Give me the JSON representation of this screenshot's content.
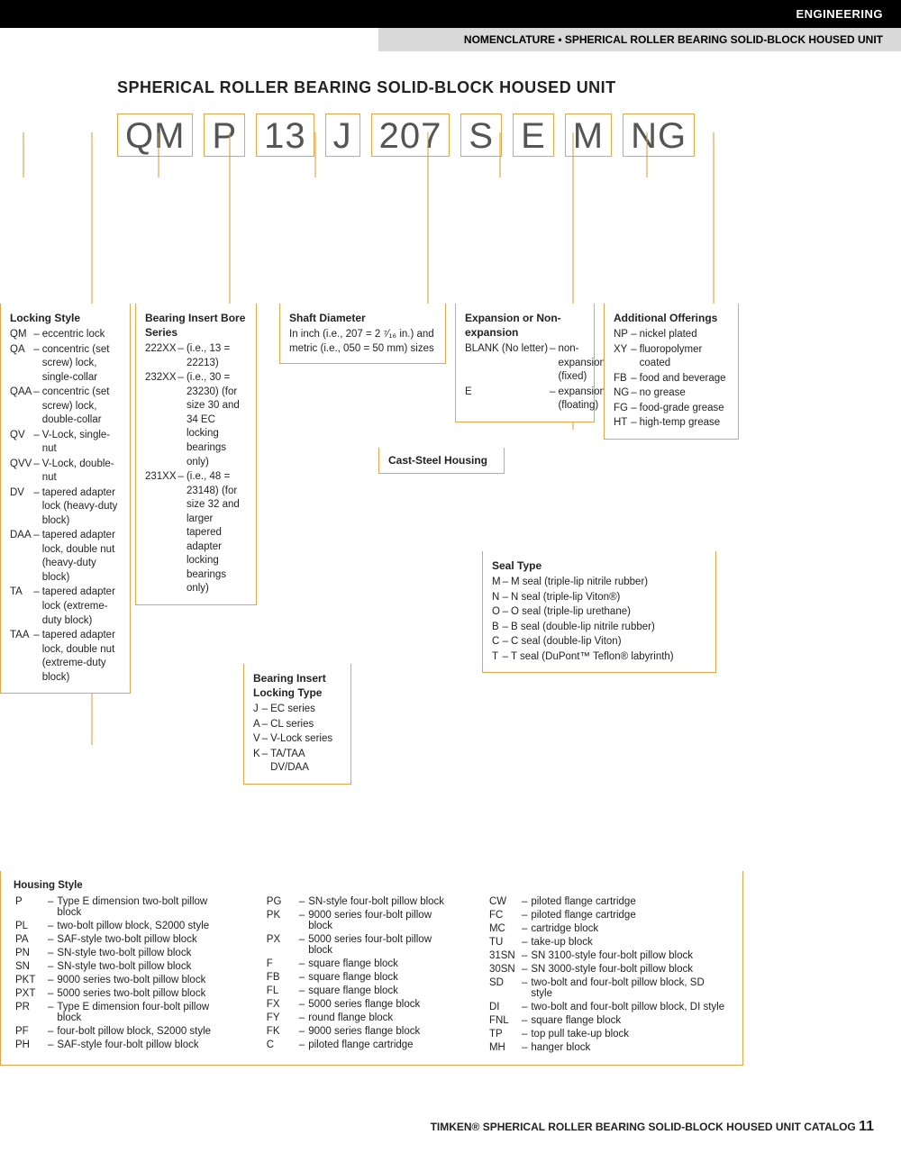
{
  "header": {
    "category": "ENGINEERING",
    "subtitle": "NOMENCLATURE • SPHERICAL ROLLER BEARING SOLID-BLOCK HOUSED UNIT"
  },
  "title": "SPHERICAL ROLLER BEARING SOLID-BLOCK HOUSED UNIT",
  "code_boxes": [
    "QM",
    "P",
    "13",
    "J",
    "207",
    "S",
    "E",
    "M",
    "NG"
  ],
  "panels": {
    "locking_style": {
      "title": "Locking Style",
      "items": [
        [
          "QM",
          "eccentric lock"
        ],
        [
          "QA",
          "concentric (set screw) lock, single-collar"
        ],
        [
          "QAA",
          "concentric (set screw) lock, double-collar"
        ],
        [
          "QV",
          "V-Lock, single-nut"
        ],
        [
          "QVV",
          "V-Lock, double-nut"
        ],
        [
          "DV",
          "tapered adapter lock (heavy-duty block)"
        ],
        [
          "DAA",
          "tapered adapter lock, double nut (heavy-duty block)"
        ],
        [
          "TA",
          "tapered adapter lock (extreme-duty block)"
        ],
        [
          "TAA",
          "tapered adapter lock, double nut (extreme-duty block)"
        ]
      ]
    },
    "bore_series": {
      "title": "Bearing Insert Bore Series",
      "items": [
        [
          "222XX",
          "(i.e., 13 = 22213)"
        ],
        [
          "232XX",
          "(i.e., 30 = 23230) (for size 30 and 34 EC locking bearings only)"
        ],
        [
          "231XX",
          "(i.e., 48 = 23148) (for size 32 and larger tapered adapter locking bearings only)"
        ]
      ]
    },
    "shaft": {
      "title": "Shaft Diameter",
      "text": "In inch (i.e., 207 = 2 ⁷⁄₁₆ in.) and metric (i.e., 050 = 50 mm) sizes"
    },
    "expansion": {
      "title": "Expansion or Non-expansion",
      "items": [
        [
          "BLANK (No letter)",
          "non-expansion (fixed)"
        ],
        [
          "E",
          "expansion (floating)"
        ]
      ]
    },
    "offerings": {
      "title": "Additional Offerings",
      "items": [
        [
          "NP",
          "nickel plated"
        ],
        [
          "XY",
          "fluoropolymer coated"
        ],
        [
          "FB",
          "food and beverage"
        ],
        [
          "NG",
          "no grease"
        ],
        [
          "FG",
          "food-grade grease"
        ],
        [
          "HT",
          "high-temp grease"
        ]
      ]
    },
    "cast_steel": {
      "title": "Cast-Steel Housing"
    },
    "seal_type": {
      "title": "Seal Type",
      "items": [
        [
          "M",
          "M seal (triple-lip nitrile rubber)"
        ],
        [
          "N",
          "N seal (triple-lip Viton®)"
        ],
        [
          "O",
          "O seal (triple-lip urethane)"
        ],
        [
          "B",
          "B seal (double-lip nitrile rubber)"
        ],
        [
          "C",
          "C seal (double-lip Viton)"
        ],
        [
          "T",
          "T seal (DuPont™ Teflon® labyrinth)"
        ]
      ]
    },
    "locking_type": {
      "title": "Bearing Insert Locking Type",
      "items": [
        [
          "J",
          "EC series"
        ],
        [
          "A",
          "CL series"
        ],
        [
          "V",
          "V-Lock series"
        ],
        [
          "K",
          "TA/TAA DV/DAA"
        ]
      ]
    }
  },
  "housing_style": {
    "title": "Housing Style",
    "cols": [
      [
        [
          "P",
          "Type E dimension two-bolt pillow block"
        ],
        [
          "PL",
          "two-bolt pillow block, S2000 style"
        ],
        [
          "PA",
          "SAF-style two-bolt pillow block"
        ],
        [
          "PN",
          "SN-style two-bolt pillow block"
        ],
        [
          "SN",
          "SN-style two-bolt pillow block"
        ],
        [
          "PKT",
          "9000 series two-bolt pillow block"
        ],
        [
          "PXT",
          "5000 series two-bolt pillow block"
        ],
        [
          "PR",
          "Type E dimension four-bolt pillow block"
        ],
        [
          "PF",
          "four-bolt pillow block, S2000 style"
        ],
        [
          "PH",
          "SAF-style four-bolt pillow block"
        ]
      ],
      [
        [
          "PG",
          "SN-style four-bolt pillow block"
        ],
        [
          "PK",
          "9000 series four-bolt pillow block"
        ],
        [
          "PX",
          "5000 series four-bolt pillow block"
        ],
        [
          "F",
          "square flange block"
        ],
        [
          "FB",
          "square flange block"
        ],
        [
          "FL",
          "square flange block"
        ],
        [
          "FX",
          "5000 series flange block"
        ],
        [
          "FY",
          "round flange block"
        ],
        [
          "FK",
          "9000 series flange block"
        ],
        [
          "C",
          "piloted flange cartridge"
        ]
      ],
      [
        [
          "CW",
          "piloted flange cartridge"
        ],
        [
          "FC",
          "piloted flange cartridge"
        ],
        [
          "MC",
          "cartridge block"
        ],
        [
          "TU",
          "take-up block"
        ],
        [
          "31SN",
          "SN 3100-style four-bolt pillow block"
        ],
        [
          "30SN",
          "SN 3000-style four-bolt pillow block"
        ],
        [
          "SD",
          "two-bolt and four-bolt pillow block, SD style"
        ],
        [
          "DI",
          "two-bolt and four-bolt pillow block, DI style"
        ],
        [
          "FNL",
          "square flange block"
        ],
        [
          "TP",
          "top pull take-up block"
        ],
        [
          "MH",
          "hanger block"
        ]
      ]
    ]
  },
  "footer": {
    "text": "TIMKEN® SPHERICAL ROLLER BEARING SOLID-BLOCK HOUSED UNIT CATALOG",
    "page": "11"
  },
  "style": {
    "box_border": "#e0a84a",
    "line_color": "#d49a3a"
  }
}
